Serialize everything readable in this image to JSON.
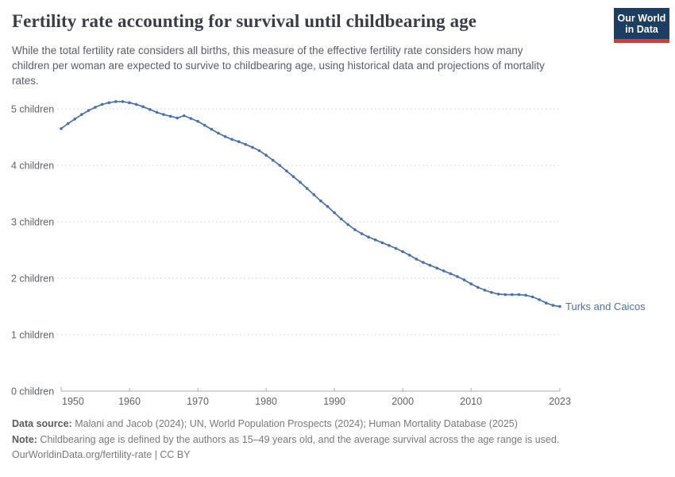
{
  "header": {
    "title": "Fertility rate accounting for survival until childbearing age",
    "subtitle": "While the total fertility rate considers all births, this measure of the effective fertility rate considers how many children per woman are expected to survive to childbearing age, using historical data and projections of mortality rates.",
    "logo": {
      "line1": "Our World",
      "line2": "in Data"
    }
  },
  "chart_data": {
    "type": "line",
    "title": "Fertility rate accounting for survival until childbearing age",
    "xlabel": "",
    "ylabel": "children",
    "xlim": [
      1950,
      2023
    ],
    "ylim": [
      0,
      5.25
    ],
    "grid": "horizontal dashed",
    "legend_position": "end-of-line label",
    "x_ticks": [
      {
        "value": 1950,
        "label": "1950"
      },
      {
        "value": 1960,
        "label": "1960"
      },
      {
        "value": 1970,
        "label": "1970"
      },
      {
        "value": 1980,
        "label": "1980"
      },
      {
        "value": 1990,
        "label": "1990"
      },
      {
        "value": 2000,
        "label": "2000"
      },
      {
        "value": 2010,
        "label": "2010"
      },
      {
        "value": 2023,
        "label": "2023"
      }
    ],
    "y_ticks": [
      {
        "value": 5,
        "label": "5 children"
      },
      {
        "value": 4,
        "label": "4 children"
      },
      {
        "value": 3,
        "label": "3 children"
      },
      {
        "value": 2,
        "label": "2 children"
      },
      {
        "value": 1,
        "label": "1 children"
      },
      {
        "value": 0,
        "label": "0 children"
      }
    ],
    "x": [
      1950,
      1951,
      1952,
      1953,
      1954,
      1955,
      1956,
      1957,
      1958,
      1959,
      1960,
      1961,
      1962,
      1963,
      1964,
      1965,
      1966,
      1967,
      1968,
      1969,
      1970,
      1971,
      1972,
      1973,
      1974,
      1975,
      1976,
      1977,
      1978,
      1979,
      1980,
      1981,
      1982,
      1983,
      1984,
      1985,
      1986,
      1987,
      1988,
      1989,
      1990,
      1991,
      1992,
      1993,
      1994,
      1995,
      1996,
      1997,
      1998,
      1999,
      2000,
      2001,
      2002,
      2003,
      2004,
      2005,
      2006,
      2007,
      2008,
      2009,
      2010,
      2011,
      2012,
      2013,
      2014,
      2015,
      2016,
      2017,
      2018,
      2019,
      2020,
      2021,
      2022,
      2023
    ],
    "series": [
      {
        "name": "Turks and Caicos",
        "color": "#4c70a9",
        "values": [
          4.65,
          4.74,
          4.82,
          4.9,
          4.97,
          5.03,
          5.08,
          5.11,
          5.13,
          5.13,
          5.11,
          5.08,
          5.04,
          4.99,
          4.94,
          4.9,
          4.87,
          4.84,
          4.88,
          4.83,
          4.78,
          4.71,
          4.64,
          4.57,
          4.51,
          4.46,
          4.42,
          4.37,
          4.32,
          4.26,
          4.18,
          4.09,
          4.0,
          3.9,
          3.8,
          3.7,
          3.59,
          3.48,
          3.37,
          3.27,
          3.16,
          3.05,
          2.95,
          2.86,
          2.79,
          2.73,
          2.68,
          2.63,
          2.58,
          2.53,
          2.47,
          2.41,
          2.34,
          2.28,
          2.23,
          2.18,
          2.13,
          2.08,
          2.03,
          1.97,
          1.9,
          1.84,
          1.79,
          1.75,
          1.72,
          1.71,
          1.71,
          1.71,
          1.7,
          1.67,
          1.62,
          1.56,
          1.52,
          1.5
        ]
      }
    ],
    "entity_label": "Turks and Caicos"
  },
  "footer": {
    "data_source_label": "Data source:",
    "data_source_text": " Malani and Jacob (2024); UN, World Population Prospects (2024); Human Mortality Database (2025)",
    "note_label": "Note:",
    "note_text": " Childbearing age is defined by the authors as 15–49 years old, and the average survival across the age range is used.",
    "url_line": "OurWorldinData.org/fertility-rate | CC BY"
  },
  "colors": {
    "line": "#4c70a9",
    "entity_label": "#4c70a9",
    "gridline": "#dadada",
    "axis": "#ababab",
    "tick_text": "#5f6368",
    "logo_bg": "#1d3d63",
    "logo_bar": "#d73c34"
  }
}
